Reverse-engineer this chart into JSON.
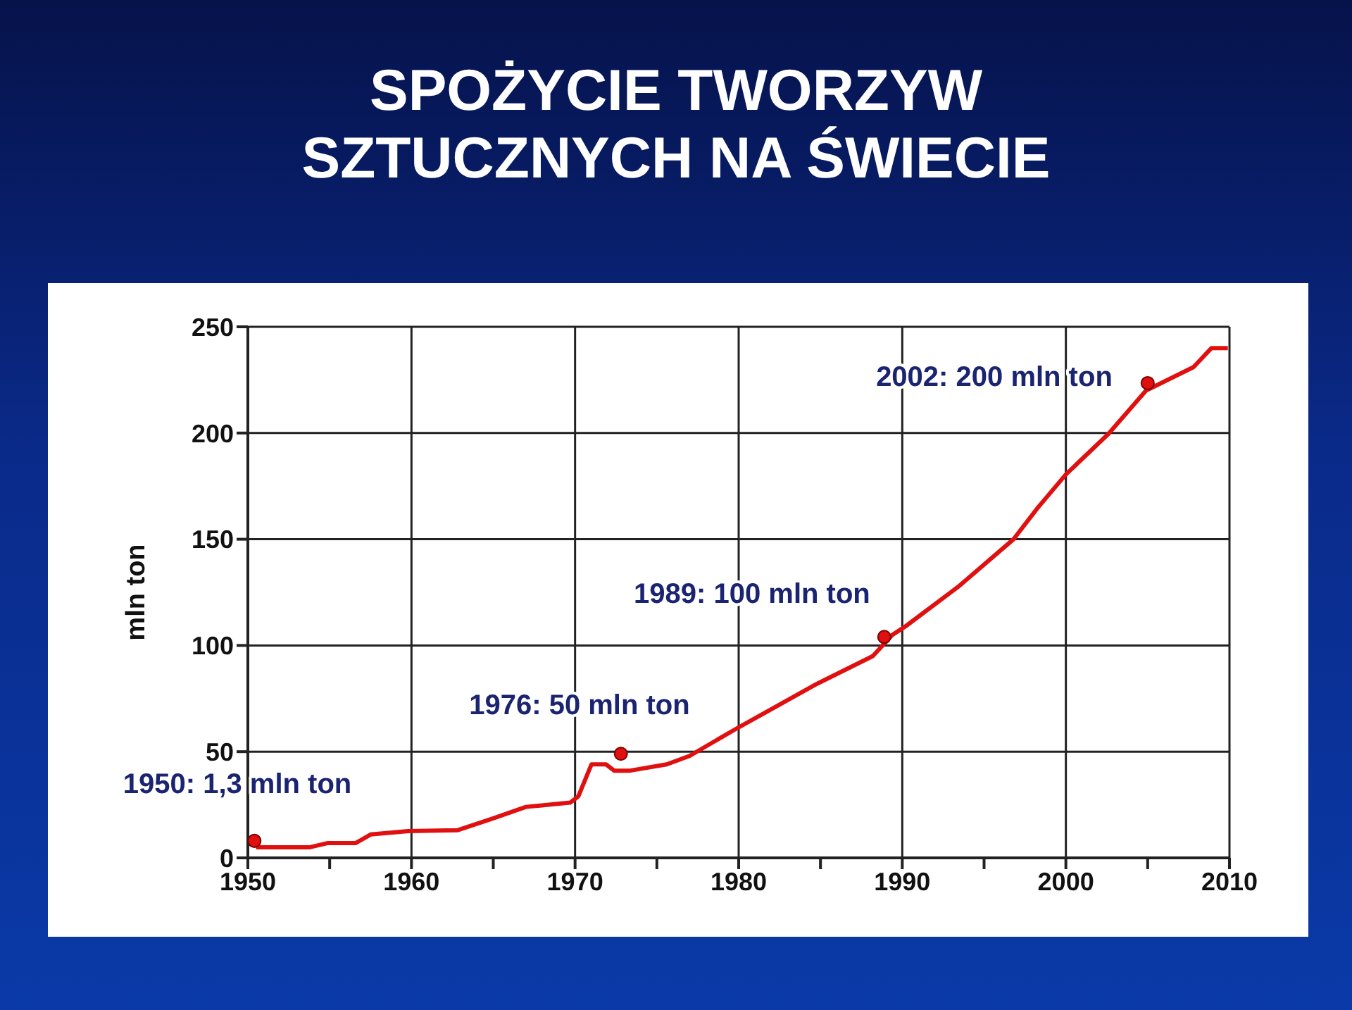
{
  "chart_data": {
    "type": "line",
    "title": "SPOŻYCIE TWORZYW\nSZTUCZNYCH NA ŚWIECIE",
    "ylabel": "mln ton",
    "xlim": [
      1950,
      2010
    ],
    "xticks": [
      1950,
      {
        "value": 1955,
        "label": null
      },
      1960,
      {
        "value": 1965,
        "label": null
      },
      1970,
      {
        "value": 1975,
        "label": null
      },
      1980,
      {
        "value": 1985,
        "label": null
      },
      1990,
      {
        "value": 1995,
        "label": null
      },
      2000,
      {
        "value": 2005,
        "label": null
      },
      2010
    ],
    "ylim": [
      0,
      250
    ],
    "yticks": [
      0,
      50,
      100,
      150,
      200,
      250
    ],
    "grid": true,
    "series": [
      {
        "color": "#e01010",
        "marker": "none",
        "x": [
          1950.5,
          1953.8,
          1954.9,
          1956.6,
          1957.5,
          1959.8,
          1962.8,
          1965,
          1967,
          1969.7,
          1970.2,
          1971,
          1971.9,
          1972.4,
          1973.3,
          1975.6,
          1977,
          1979,
          1979.9,
          1984.8,
          1988.2,
          1989.4,
          1990.2,
          1993.4,
          1996.8,
          1998.3,
          2000,
          2002.6,
          2004.9,
          2007.8,
          2008.9,
          2009.9
        ],
        "values": [
          5,
          5,
          7,
          7,
          11,
          12.6,
          13,
          18.6,
          24,
          26,
          29,
          44,
          44,
          41,
          41,
          44,
          48,
          57,
          61,
          82,
          95,
          105,
          109,
          127.5,
          150,
          165,
          180.5,
          199.6,
          220,
          231,
          240,
          240
        ]
      },
      {
        "type": "scatter",
        "color": "#e01010",
        "marker": "circle",
        "x": [
          1950.4,
          1972.8,
          1988.9,
          2005
        ],
        "values": [
          8,
          49,
          104,
          223.5
        ]
      }
    ],
    "annotations": [
      {
        "text": "1950: 1,3 mln ton",
        "x": 1950.4,
        "y": 8
      },
      {
        "text": "1976: 50 mln ton",
        "x": 1972.8,
        "y": 49
      },
      {
        "text": "1989: 100 mln ton",
        "x": 1988.9,
        "y": 104
      },
      {
        "text": "2002: 200 mln ton",
        "x": 2005,
        "y": 223.5
      }
    ]
  }
}
